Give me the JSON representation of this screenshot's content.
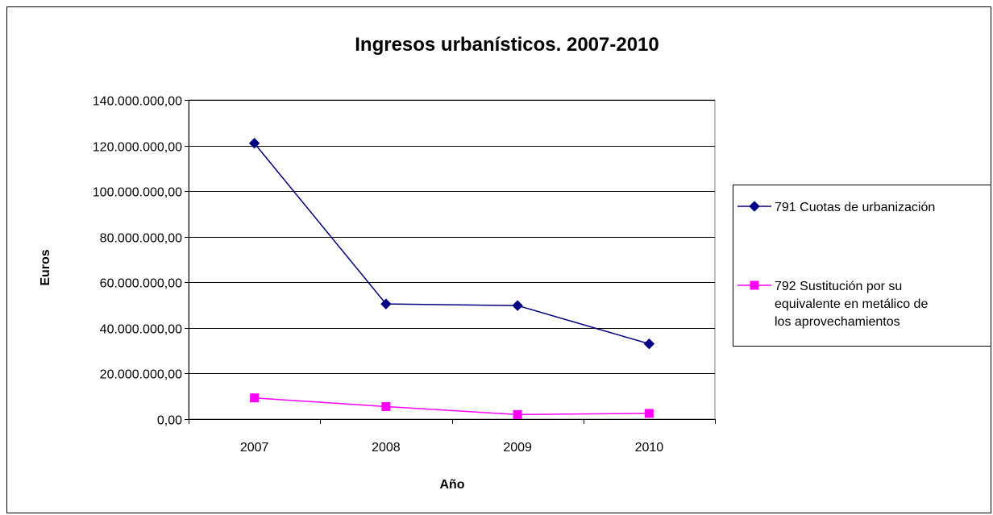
{
  "chart_data": {
    "type": "line",
    "title": "Ingresos urbanísticos. 2007-2010",
    "xlabel": "Año",
    "ylabel": "Euros",
    "categories": [
      "2007",
      "2008",
      "2009",
      "2010"
    ],
    "ylim": [
      0,
      140000000
    ],
    "ytick_step": 20000000,
    "ytick_labels": [
      "0,00",
      "20.000.000,00",
      "40.000.000,00",
      "60.000.000,00",
      "80.000.000,00",
      "100.000.000,00",
      "120.000.000,00",
      "140.000.000,00"
    ],
    "grid": true,
    "legend_position": "right",
    "series": [
      {
        "name": "791 Cuotas de urbanización",
        "legend_lines": [
          "791 Cuotas de urbanización"
        ],
        "marker": "diamond",
        "color": "#000080",
        "values": [
          121000000,
          50500000,
          49800000,
          33000000
        ]
      },
      {
        "name": "792 Sustitución por su equivalente en metálico de los aprovechamientos",
        "legend_lines": [
          "792 Sustitución por su",
          "equivalente en metálico de",
          "los aprovechamientos"
        ],
        "marker": "square",
        "color": "#FF00FF",
        "values": [
          9300000,
          5500000,
          2000000,
          2500000
        ]
      }
    ]
  }
}
